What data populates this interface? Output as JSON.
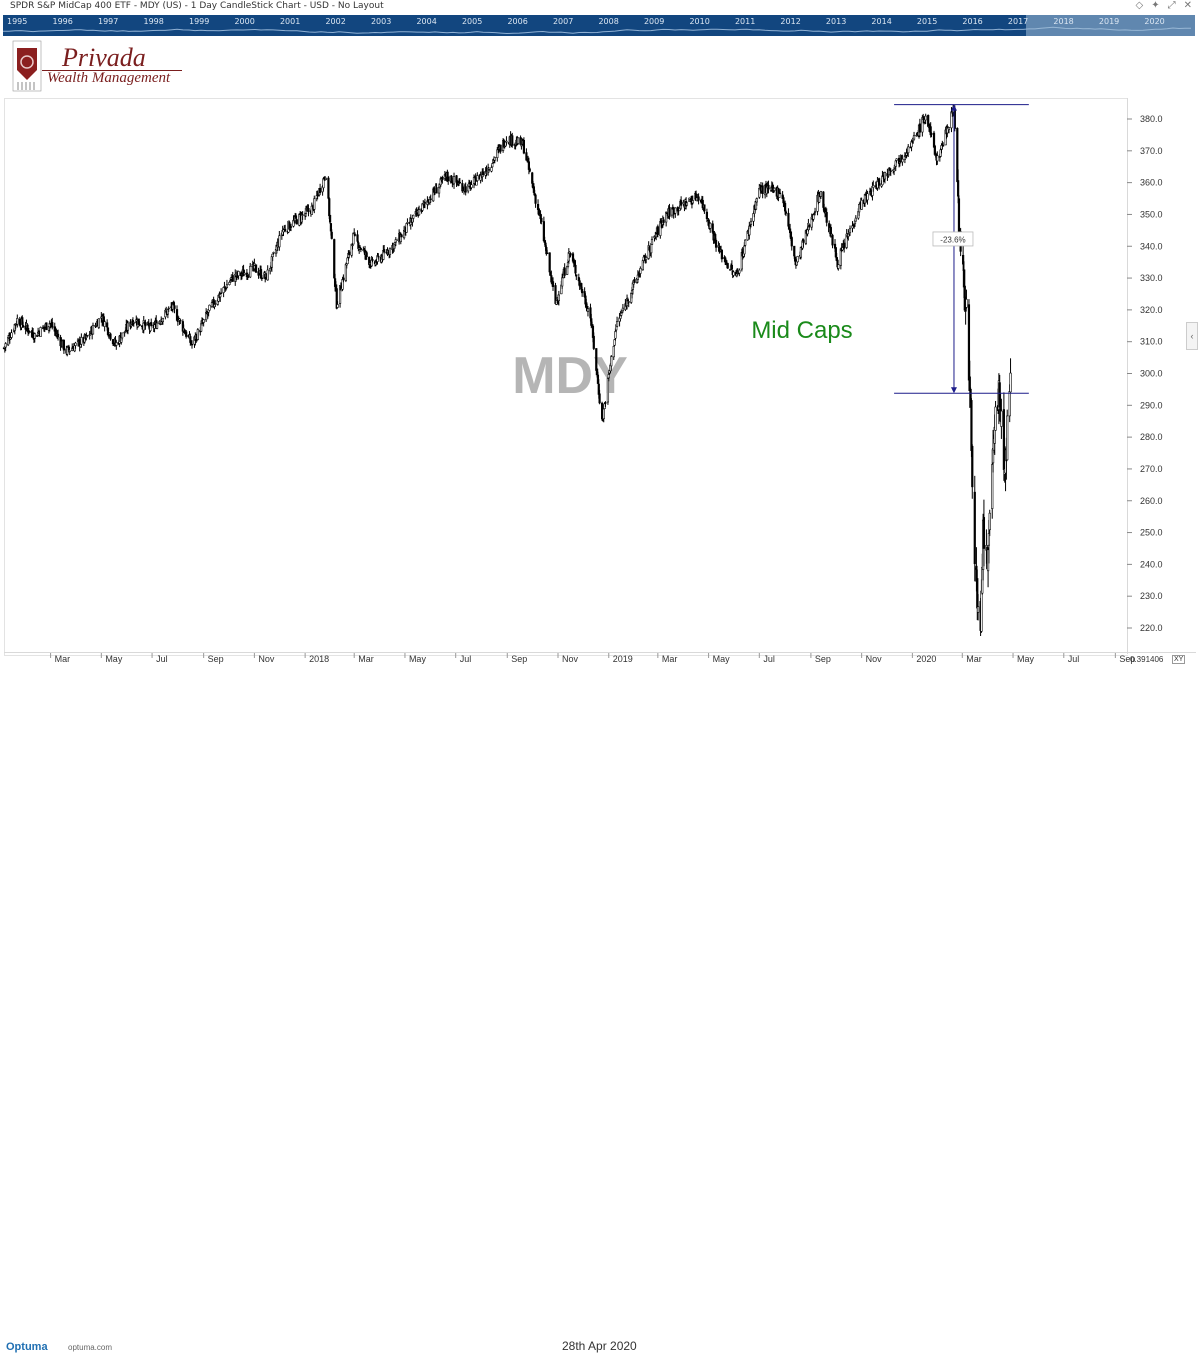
{
  "window": {
    "title": "SPDR S&P MidCap 400 ETF - MDY (US) - 1 Day CandleStick Chart - USD - No Layout"
  },
  "navigator": {
    "years": [
      "1995",
      "1996",
      "1997",
      "1998",
      "1999",
      "2000",
      "2001",
      "2002",
      "2003",
      "2004",
      "2005",
      "2006",
      "2007",
      "2008",
      "2009",
      "2010",
      "2011",
      "2012",
      "2013",
      "2014",
      "2015",
      "2016",
      "2017",
      "2018",
      "2019",
      "2020"
    ]
  },
  "logo": {
    "name": "Privada",
    "subtitle": "Wealth Management"
  },
  "footer": {
    "brand": "Optuma",
    "url": "optuma.com",
    "date": "28th Apr 2020",
    "corner_value": "0.391406",
    "corner_xy": "XY"
  },
  "chart_data": {
    "type": "candlestick",
    "symbol_watermark": "MDY",
    "annotation_text": "Mid Caps",
    "measure_label": "-23.6%",
    "y_ticks": [
      380,
      370,
      360,
      350,
      340,
      330,
      320,
      310,
      300,
      290,
      280,
      270,
      260,
      250,
      240,
      230,
      220
    ],
    "ylim": [
      213,
      386
    ],
    "x_labels": [
      "Mar",
      "May",
      "Jul",
      "Sep",
      "Nov",
      "2018",
      "Mar",
      "May",
      "Jul",
      "Sep",
      "Nov",
      "2019",
      "Mar",
      "May",
      "Jul",
      "Sep",
      "Nov",
      "2020",
      "Mar",
      "May",
      "Jul",
      "Sep"
    ],
    "x_range": [
      "2017-01-04",
      "2020-09-15"
    ],
    "x_label_dates": [
      "2017-03-01",
      "2017-05-01",
      "2017-07-01",
      "2017-09-01",
      "2017-11-01",
      "2018-01-01",
      "2018-03-01",
      "2018-05-01",
      "2018-07-01",
      "2018-09-01",
      "2018-11-01",
      "2019-01-01",
      "2019-03-01",
      "2019-05-01",
      "2019-07-01",
      "2019-09-01",
      "2019-11-01",
      "2020-01-01",
      "2020-03-01",
      "2020-05-01",
      "2020-07-01",
      "2020-09-01"
    ],
    "horizontal_lines": [
      {
        "value": 384.5,
        "from": "2019-12-10",
        "to": "2020-05-20"
      },
      {
        "value": 293.8,
        "from": "2019-12-10",
        "to": "2020-05-20"
      }
    ],
    "measure": {
      "date": "2020-02-20",
      "from": 384.5,
      "to": 293.8
    },
    "price_path": [
      {
        "x": "2017-01-04",
        "y": 308
      },
      {
        "x": "2017-01-20",
        "y": 317
      },
      {
        "x": "2017-02-10",
        "y": 312
      },
      {
        "x": "2017-02-28",
        "y": 316
      },
      {
        "x": "2017-03-20",
        "y": 307
      },
      {
        "x": "2017-04-13",
        "y": 311
      },
      {
        "x": "2017-05-01",
        "y": 318
      },
      {
        "x": "2017-05-18",
        "y": 309
      },
      {
        "x": "2017-06-08",
        "y": 317
      },
      {
        "x": "2017-06-30",
        "y": 314
      },
      {
        "x": "2017-07-25",
        "y": 321
      },
      {
        "x": "2017-08-18",
        "y": 309
      },
      {
        "x": "2017-09-10",
        "y": 321
      },
      {
        "x": "2017-10-05",
        "y": 330
      },
      {
        "x": "2017-11-01",
        "y": 333
      },
      {
        "x": "2017-11-15",
        "y": 330
      },
      {
        "x": "2017-12-05",
        "y": 345
      },
      {
        "x": "2018-01-10",
        "y": 352
      },
      {
        "x": "2018-01-26",
        "y": 363
      },
      {
        "x": "2018-02-08",
        "y": 322
      },
      {
        "x": "2018-02-28",
        "y": 343
      },
      {
        "x": "2018-03-23",
        "y": 334
      },
      {
        "x": "2018-04-20",
        "y": 341
      },
      {
        "x": "2018-05-15",
        "y": 350
      },
      {
        "x": "2018-06-20",
        "y": 362
      },
      {
        "x": "2018-07-15",
        "y": 358
      },
      {
        "x": "2018-08-10",
        "y": 365
      },
      {
        "x": "2018-08-31",
        "y": 374
      },
      {
        "x": "2018-09-20",
        "y": 372
      },
      {
        "x": "2018-10-11",
        "y": 348
      },
      {
        "x": "2018-10-29",
        "y": 322
      },
      {
        "x": "2018-11-15",
        "y": 338
      },
      {
        "x": "2018-12-10",
        "y": 318
      },
      {
        "x": "2018-12-24",
        "y": 285
      },
      {
        "x": "2019-01-10",
        "y": 315
      },
      {
        "x": "2019-02-15",
        "y": 337
      },
      {
        "x": "2019-03-10",
        "y": 350
      },
      {
        "x": "2019-04-20",
        "y": 356
      },
      {
        "x": "2019-05-13",
        "y": 339
      },
      {
        "x": "2019-06-03",
        "y": 330
      },
      {
        "x": "2019-07-01",
        "y": 358
      },
      {
        "x": "2019-07-28",
        "y": 357
      },
      {
        "x": "2019-08-14",
        "y": 334
      },
      {
        "x": "2019-09-12",
        "y": 357
      },
      {
        "x": "2019-10-03",
        "y": 335
      },
      {
        "x": "2019-10-30",
        "y": 353
      },
      {
        "x": "2019-12-01",
        "y": 363
      },
      {
        "x": "2019-12-31",
        "y": 372
      },
      {
        "x": "2020-01-17",
        "y": 381
      },
      {
        "x": "2020-01-31",
        "y": 367
      },
      {
        "x": "2020-02-20",
        "y": 384
      },
      {
        "x": "2020-02-28",
        "y": 336
      },
      {
        "x": "2020-03-06",
        "y": 321
      },
      {
        "x": "2020-03-12",
        "y": 278
      },
      {
        "x": "2020-03-18",
        "y": 230
      },
      {
        "x": "2020-03-23",
        "y": 214
      },
      {
        "x": "2020-03-26",
        "y": 250
      },
      {
        "x": "2020-04-01",
        "y": 240
      },
      {
        "x": "2020-04-09",
        "y": 288
      },
      {
        "x": "2020-04-14",
        "y": 292
      },
      {
        "x": "2020-04-21",
        "y": 271
      },
      {
        "x": "2020-04-28",
        "y": 295
      }
    ]
  }
}
